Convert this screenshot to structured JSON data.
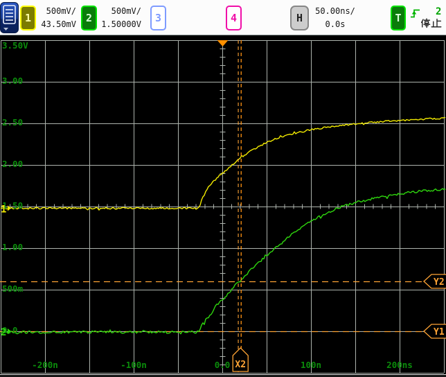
{
  "header": {
    "menu_button": {
      "icon": "menu-list-icon"
    },
    "channels": [
      {
        "label": "1",
        "volts_per_div": "500mV/",
        "offset": "43.50mV",
        "active": true
      },
      {
        "label": "2",
        "volts_per_div": "500mV/",
        "offset": "1.50000V",
        "active": true
      },
      {
        "label": "3",
        "active": false
      },
      {
        "label": "4",
        "active": false
      }
    ],
    "horizontal": {
      "label": "H",
      "time_per_div": "50.00ns/",
      "delay": "0.0s"
    },
    "trigger": {
      "label": "T",
      "edge_icon": "rising-edge-icon",
      "source": "2",
      "run_state": "停止"
    }
  },
  "plot": {
    "cursor_labels": {
      "x2": "X2",
      "y1": "Y1",
      "y2": "Y2"
    }
  },
  "colors": {
    "ch1": "#f2ea00",
    "ch2": "#2fd60e",
    "ch3": "#7e9bff",
    "ch4": "#f00fa8",
    "cursor": "#ffa435",
    "cursor2": "#ff9312",
    "grid": "#aeb4ae",
    "axis_label": "#0b8c0b",
    "trigger_marker": "#ff9000"
  },
  "chart_data": {
    "type": "line",
    "title": "",
    "x_unit": "ns",
    "y_unit": "V",
    "time_per_div": "50.00ns",
    "volts_per_div": "500mV",
    "x_range": [
      -250,
      250
    ],
    "y_range": [
      -0.5,
      3.5
    ],
    "grid": "on",
    "x_ticks": [
      {
        "text": "-200n",
        "t": -200
      },
      {
        "text": "-100n",
        "t": -100
      },
      {
        "text": "0.0",
        "t": 0
      },
      {
        "text": "100n",
        "t": 100
      },
      {
        "text": "200ns",
        "t": 200
      }
    ],
    "y_ticks": [
      {
        "text": "3.50V",
        "v": 3.5
      },
      {
        "text": "3.00",
        "v": 3.0
      },
      {
        "text": "2.50",
        "v": 2.5
      },
      {
        "text": "2.00",
        "v": 2.0
      },
      {
        "text": "1.50",
        "v": 1.5
      },
      {
        "text": "1.00",
        "v": 1.0
      },
      {
        "text": "500m",
        "v": 0.5
      },
      {
        "text": "0.0",
        "v": 0.0
      }
    ],
    "cursors": {
      "x1_ns": 18.8,
      "x2_ns": 20.5,
      "y1_V": 0.0,
      "y2_V": 0.6,
      "trigger_t_ns": 0
    },
    "series": [
      {
        "name": "channel-1",
        "marker_v": 1.48,
        "points": [
          [
            -250,
            1.48
          ],
          [
            -200,
            1.48
          ],
          [
            -150,
            1.48
          ],
          [
            -100,
            1.48
          ],
          [
            -60,
            1.48
          ],
          [
            -30,
            1.48
          ],
          [
            -26,
            1.49
          ],
          [
            -24,
            1.56
          ],
          [
            -22,
            1.62
          ],
          [
            -19,
            1.68
          ],
          [
            -16,
            1.73
          ],
          [
            -13,
            1.77
          ],
          [
            -10,
            1.8
          ],
          [
            -7,
            1.835
          ],
          [
            -4,
            1.865
          ],
          [
            -1,
            1.89
          ],
          [
            2,
            1.915
          ],
          [
            5,
            1.945
          ],
          [
            9,
            1.98
          ],
          [
            13,
            2.015
          ],
          [
            17,
            2.05
          ],
          [
            21,
            2.085
          ],
          [
            26,
            2.125
          ],
          [
            31,
            2.16
          ],
          [
            37,
            2.2
          ],
          [
            44,
            2.24
          ],
          [
            51,
            2.275
          ],
          [
            59,
            2.31
          ],
          [
            69,
            2.345
          ],
          [
            80,
            2.375
          ],
          [
            92,
            2.405
          ],
          [
            105,
            2.432
          ],
          [
            120,
            2.458
          ],
          [
            135,
            2.478
          ],
          [
            150,
            2.495
          ],
          [
            165,
            2.51
          ],
          [
            180,
            2.522
          ],
          [
            195,
            2.532
          ],
          [
            210,
            2.542
          ],
          [
            225,
            2.55
          ],
          [
            240,
            2.558
          ],
          [
            252,
            2.565
          ]
        ]
      },
      {
        "name": "channel-2",
        "marker_v": 0.0,
        "points": [
          [
            -250,
            -0.01
          ],
          [
            -200,
            -0.01
          ],
          [
            -150,
            -0.01
          ],
          [
            -100,
            -0.01
          ],
          [
            -60,
            -0.01
          ],
          [
            -27,
            -0.01
          ],
          [
            -25,
            0.01
          ],
          [
            -23.5,
            0.06
          ],
          [
            -22,
            0.095
          ],
          [
            -20.5,
            0.08
          ],
          [
            -19,
            0.125
          ],
          [
            -17.5,
            0.16
          ],
          [
            -16,
            0.15
          ],
          [
            -14,
            0.19
          ],
          [
            -12,
            0.225
          ],
          [
            -10,
            0.255
          ],
          [
            -8,
            0.29
          ],
          [
            -6,
            0.32
          ],
          [
            -4,
            0.345
          ],
          [
            -2,
            0.362
          ],
          [
            0,
            0.378
          ],
          [
            2,
            0.4
          ],
          [
            4,
            0.425
          ],
          [
            6,
            0.45
          ],
          [
            8,
            0.477
          ],
          [
            11,
            0.512
          ],
          [
            14,
            0.547
          ],
          [
            17,
            0.576
          ],
          [
            20,
            0.605
          ],
          [
            24,
            0.652
          ],
          [
            28,
            0.697
          ],
          [
            32,
            0.737
          ],
          [
            36,
            0.777
          ],
          [
            40,
            0.817
          ],
          [
            45,
            0.866
          ],
          [
            50,
            0.912
          ],
          [
            55,
            0.957
          ],
          [
            60,
            1.0
          ],
          [
            65,
            1.045
          ],
          [
            70,
            1.09
          ],
          [
            75,
            1.133
          ],
          [
            80,
            1.174
          ],
          [
            85,
            1.214
          ],
          [
            90,
            1.253
          ],
          [
            95,
            1.29
          ],
          [
            100,
            1.324
          ],
          [
            105,
            1.355
          ],
          [
            110,
            1.384
          ],
          [
            115,
            1.41
          ],
          [
            120,
            1.435
          ],
          [
            126,
            1.462
          ],
          [
            132,
            1.486
          ],
          [
            138,
            1.508
          ],
          [
            145,
            1.53
          ],
          [
            152,
            1.55
          ],
          [
            160,
            1.572
          ],
          [
            168,
            1.59
          ],
          [
            177,
            1.61
          ],
          [
            187,
            1.63
          ],
          [
            198,
            1.65
          ],
          [
            210,
            1.668
          ],
          [
            222,
            1.683
          ],
          [
            235,
            1.696
          ],
          [
            252,
            1.71
          ]
        ]
      }
    ]
  }
}
